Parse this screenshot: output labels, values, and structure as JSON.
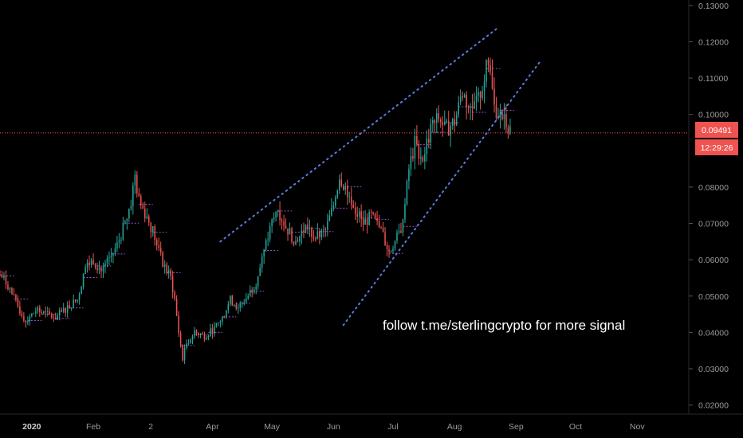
{
  "chart_data": {
    "type": "candlestick",
    "x_ticks": [
      {
        "label": "2020",
        "date": "2020-01-01",
        "bold": true
      },
      {
        "label": "Feb",
        "date": "2020-02-01"
      },
      {
        "label": "2",
        "date": "2020-03-01"
      },
      {
        "label": "Apr",
        "date": "2020-04-01"
      },
      {
        "label": "May",
        "date": "2020-05-01"
      },
      {
        "label": "Jun",
        "date": "2020-06-01"
      },
      {
        "label": "Jul",
        "date": "2020-07-01"
      },
      {
        "label": "Aug",
        "date": "2020-08-01"
      },
      {
        "label": "Sep",
        "date": "2020-09-01"
      },
      {
        "label": "Oct",
        "date": "2020-10-01"
      },
      {
        "label": "Nov",
        "date": "2020-11-01"
      }
    ],
    "y_ticks": [
      "0.13000",
      "0.12000",
      "0.11000",
      "0.10000",
      "0.08000",
      "0.07000",
      "0.06000",
      "0.05000",
      "0.04000",
      "0.03000",
      "0.02000"
    ],
    "y_range": [
      0.0175,
      0.1315
    ],
    "x_range": [
      "2019-12-16",
      "2020-11-27"
    ],
    "price_path": [
      [
        "2019-12-16",
        0.056
      ],
      [
        "2019-12-20",
        0.053
      ],
      [
        "2019-12-24",
        0.048
      ],
      [
        "2019-12-29",
        0.043
      ],
      [
        "2020-01-03",
        0.046
      ],
      [
        "2020-01-08",
        0.045
      ],
      [
        "2020-01-13",
        0.044
      ],
      [
        "2020-01-19",
        0.047
      ],
      [
        "2020-01-24",
        0.049
      ],
      [
        "2020-01-28",
        0.058
      ],
      [
        "2020-02-01",
        0.06
      ],
      [
        "2020-02-05",
        0.057
      ],
      [
        "2020-02-09",
        0.06
      ],
      [
        "2020-02-13",
        0.064
      ],
      [
        "2020-02-17",
        0.07
      ],
      [
        "2020-02-20",
        0.076
      ],
      [
        "2020-02-22",
        0.083
      ],
      [
        "2020-02-24",
        0.076
      ],
      [
        "2020-02-27",
        0.073
      ],
      [
        "2020-03-02",
        0.068
      ],
      [
        "2020-03-05",
        0.062
      ],
      [
        "2020-03-08",
        0.058
      ],
      [
        "2020-03-11",
        0.055
      ],
      [
        "2020-03-13",
        0.049
      ],
      [
        "2020-03-15",
        0.04
      ],
      [
        "2020-03-17",
        0.033
      ],
      [
        "2020-03-19",
        0.037
      ],
      [
        "2020-03-23",
        0.04
      ],
      [
        "2020-03-28",
        0.039
      ],
      [
        "2020-04-02",
        0.041
      ],
      [
        "2020-04-06",
        0.044
      ],
      [
        "2020-04-10",
        0.049
      ],
      [
        "2020-04-14",
        0.047
      ],
      [
        "2020-04-19",
        0.05
      ],
      [
        "2020-04-23",
        0.054
      ],
      [
        "2020-04-27",
        0.062
      ],
      [
        "2020-05-01",
        0.07
      ],
      [
        "2020-05-04",
        0.074
      ],
      [
        "2020-05-08",
        0.069
      ],
      [
        "2020-05-13",
        0.065
      ],
      [
        "2020-05-18",
        0.069
      ],
      [
        "2020-05-23",
        0.066
      ],
      [
        "2020-05-28",
        0.068
      ],
      [
        "2020-06-01",
        0.075
      ],
      [
        "2020-06-04",
        0.083
      ],
      [
        "2020-06-08",
        0.079
      ],
      [
        "2020-06-12",
        0.074
      ],
      [
        "2020-06-16",
        0.07
      ],
      [
        "2020-06-20",
        0.072
      ],
      [
        "2020-06-25",
        0.068
      ],
      [
        "2020-06-29",
        0.062
      ],
      [
        "2020-07-03",
        0.066
      ],
      [
        "2020-07-06",
        0.07
      ],
      [
        "2020-07-09",
        0.085
      ],
      [
        "2020-07-12",
        0.092
      ],
      [
        "2020-07-16",
        0.088
      ],
      [
        "2020-07-20",
        0.096
      ],
      [
        "2020-07-24",
        0.099
      ],
      [
        "2020-07-28",
        0.096
      ],
      [
        "2020-08-01",
        0.098
      ],
      [
        "2020-08-05",
        0.106
      ],
      [
        "2020-08-09",
        0.101
      ],
      [
        "2020-08-13",
        0.104
      ],
      [
        "2020-08-16",
        0.11
      ],
      [
        "2020-08-18",
        0.115
      ],
      [
        "2020-08-21",
        0.102
      ],
      [
        "2020-08-24",
        0.1
      ],
      [
        "2020-08-27",
        0.097
      ],
      [
        "2020-08-29",
        0.095
      ]
    ],
    "channel_lines": [
      {
        "name": "upper",
        "points": [
          [
            "2020-04-05",
            0.065
          ],
          [
            "2020-08-22",
            0.1235
          ]
        ]
      },
      {
        "name": "lower",
        "points": [
          [
            "2020-06-06",
            0.042
          ],
          [
            "2020-09-13",
            0.1145
          ]
        ]
      }
    ],
    "current_price": "0.09491",
    "countdown": "12:29:26",
    "annotation": "follow t.me/sterlingcrypto for more signal",
    "colors": {
      "background": "#000000",
      "up": "#26a69a",
      "down": "#ef5350",
      "channel": "#5a7fe0",
      "level": "#9b4fd6",
      "price_line": "#ef5350",
      "axis_text": "#9a9a9a",
      "tag_bg": "#ef5350"
    },
    "grid": false
  }
}
